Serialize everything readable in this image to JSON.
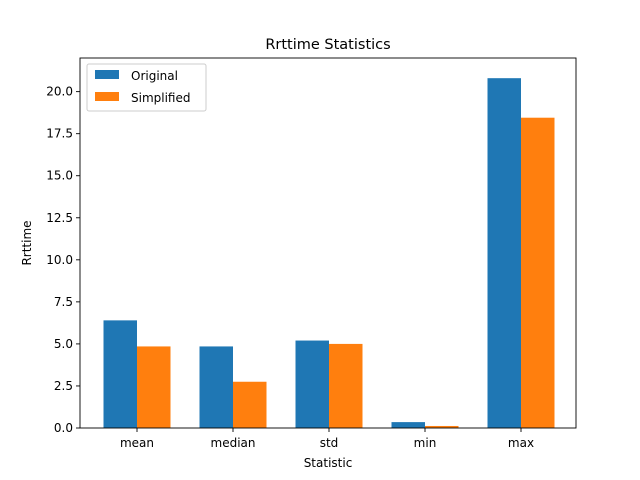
{
  "chart_data": {
    "type": "bar",
    "title": "Rrttime Statistics",
    "xlabel": "Statistic",
    "ylabel": "Rrttime",
    "categories": [
      "mean",
      "median",
      "std",
      "min",
      "max"
    ],
    "series": [
      {
        "name": "Original",
        "color": "#1f77b4",
        "values": [
          6.4,
          4.85,
          5.2,
          0.35,
          20.8
        ]
      },
      {
        "name": "Simplified",
        "color": "#ff7f0e",
        "values": [
          4.85,
          2.75,
          5.0,
          0.12,
          18.45
        ]
      }
    ],
    "ylim": [
      0,
      22.0
    ],
    "yticks": [
      0.0,
      2.5,
      5.0,
      7.5,
      10.0,
      12.5,
      15.0,
      17.5,
      20.0
    ],
    "ytick_labels": [
      "0.0",
      "2.5",
      "5.0",
      "7.5",
      "10.0",
      "12.5",
      "15.0",
      "17.5",
      "20.0"
    ],
    "grid": false,
    "legend_position": "upper-left"
  }
}
